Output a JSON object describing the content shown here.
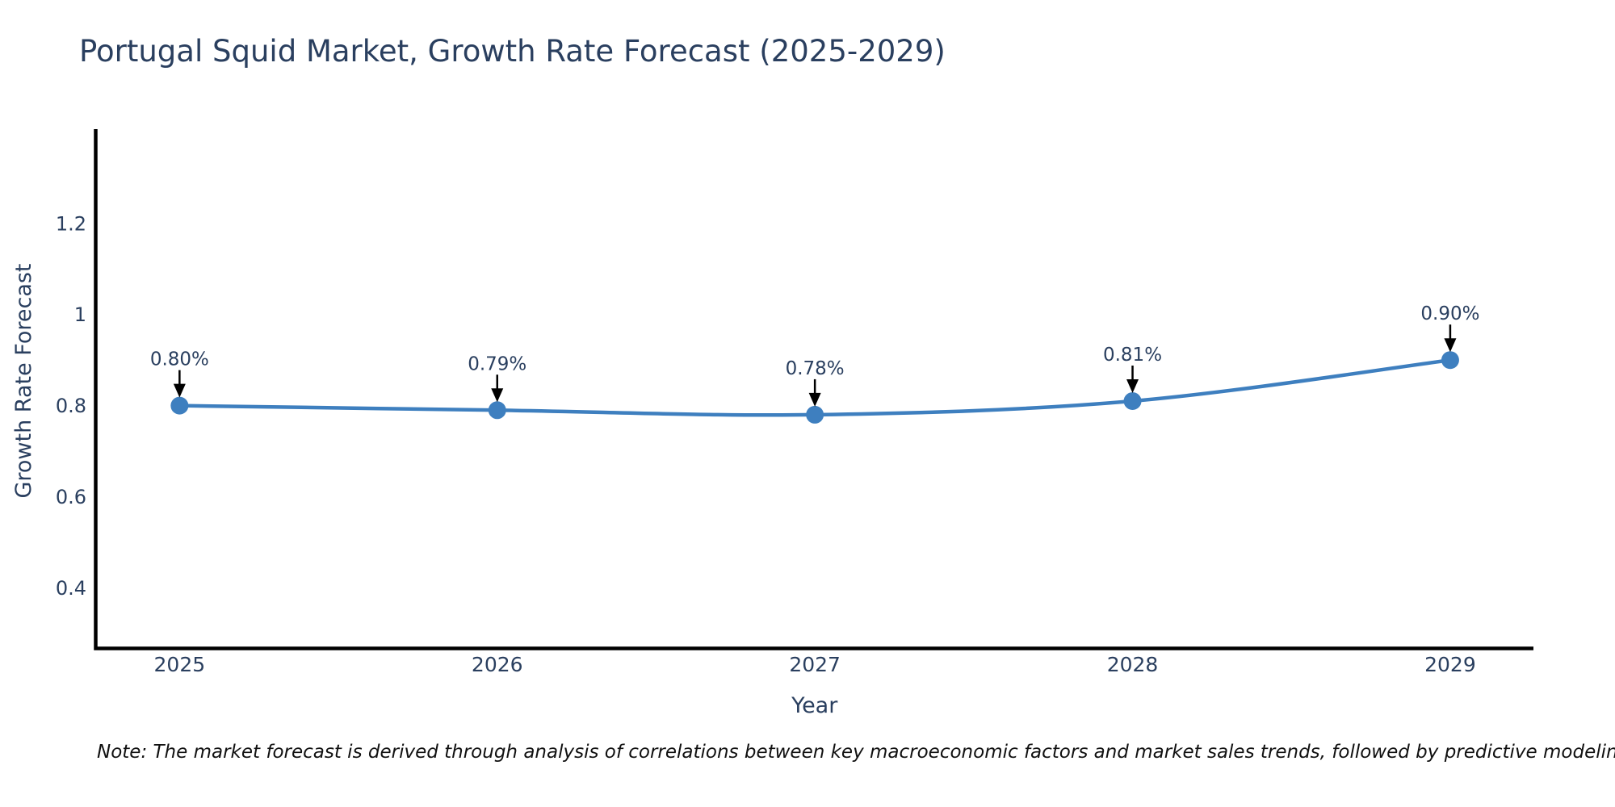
{
  "chart_data": {
    "type": "line",
    "title": "Portugal Squid Market, Growth Rate Forecast (2025-2029)",
    "xlabel": "Year",
    "ylabel": "Growth Rate Forecast",
    "x": [
      2025,
      2026,
      2027,
      2028,
      2029
    ],
    "series": [
      {
        "name": "Growth Rate Forecast",
        "values": [
          0.8,
          0.79,
          0.78,
          0.81,
          0.9
        ],
        "point_labels": [
          "0.80%",
          "0.79%",
          "0.78%",
          "0.81%",
          "0.90%"
        ],
        "color": "#3e7fbf",
        "line_shape": "spline",
        "marker_size": 11
      }
    ],
    "x_ticks": [
      {
        "value": 2025,
        "label": "2025"
      },
      {
        "value": 2026,
        "label": "2026"
      },
      {
        "value": 2027,
        "label": "2027"
      },
      {
        "value": 2028,
        "label": "2028"
      },
      {
        "value": 2029,
        "label": "2029"
      }
    ],
    "y_ticks": [
      {
        "value": 0.4,
        "label": "0.4"
      },
      {
        "value": 0.6,
        "label": "0.6"
      },
      {
        "value": 0.8,
        "label": "0.8"
      },
      {
        "value": 1.0,
        "label": "1"
      },
      {
        "value": 1.2,
        "label": "1.2"
      }
    ],
    "xlim": [
      2024.736,
      2029.262
    ],
    "ylim": [
      0.267,
      1.407
    ],
    "grid": false,
    "legend": "none",
    "axis_color": "#000000",
    "text_color": "#2a3f5f",
    "annotation_arrow_color": "#000000"
  },
  "note": {
    "text": "Note: The market forecast is derived through analysis of correlations between key macroeconomic factors and market sales trends, followed by predictive modeling to project future sales"
  }
}
